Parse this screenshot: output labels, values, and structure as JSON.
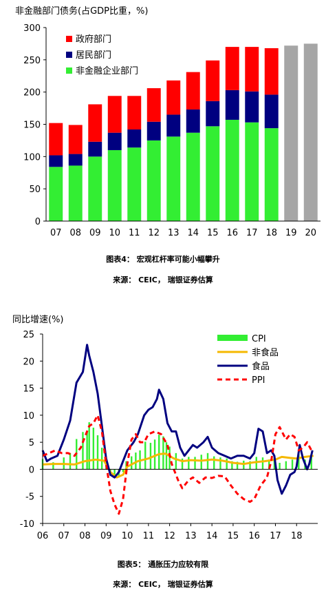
{
  "chart_data": [
    {
      "type": "bar",
      "stacked": true,
      "title": "非金融部门债务(占GDP比重，%)",
      "categories": [
        "07",
        "08",
        "09",
        "10",
        "11",
        "12",
        "13",
        "14",
        "15",
        "16",
        "17",
        "18",
        "19",
        "20"
      ],
      "ylim": [
        0,
        300
      ],
      "yticks": [
        "0",
        "50",
        "100",
        "150",
        "200",
        "250",
        "300"
      ],
      "grid": false,
      "legend_position": "top-left",
      "series": [
        {
          "name": "非金融企业部门",
          "color": "#33ee33",
          "values": [
            84,
            86,
            100,
            110,
            114,
            125,
            131,
            137,
            147,
            157,
            153,
            144,
            null,
            null
          ]
        },
        {
          "name": "居民部门",
          "color": "#000080",
          "values": [
            18,
            18,
            23,
            27,
            28,
            29,
            34,
            36,
            39,
            46,
            48,
            52,
            null,
            null
          ]
        },
        {
          "name": "政府部门",
          "color": "#ff0000",
          "values": [
            50,
            45,
            58,
            57,
            52,
            52,
            53,
            58,
            63,
            67,
            69,
            72,
            null,
            null
          ]
        },
        {
          "color": "#a6a6a6",
          "values": [
            null,
            null,
            null,
            null,
            null,
            null,
            null,
            null,
            null,
            null,
            null,
            null,
            272,
            275
          ]
        }
      ],
      "caption": "图表4： 宏观杠杆率可能小幅攀升",
      "source": "来源： CEIC， 瑞银证券估算"
    },
    {
      "type": "line",
      "title": "同比增速(%)",
      "ylim": [
        -10,
        25
      ],
      "yticks": [
        "25",
        "20",
        "15",
        "10",
        "5",
        "0",
        "-5",
        "-10"
      ],
      "xlim": [
        2006.0,
        2019.0
      ],
      "xticks": [
        "06",
        "07",
        "08",
        "09",
        "10",
        "11",
        "12",
        "13",
        "14",
        "15",
        "16",
        "17",
        "18"
      ],
      "grid": false,
      "legend_position": "top-right",
      "series": [
        {
          "name": "CPI",
          "style": "bar",
          "color": "#33ee33",
          "points": [
            [
              2006.0,
              1.9
            ],
            [
              2006.5,
              1.3
            ],
            [
              2007.0,
              2.2
            ],
            [
              2007.3,
              3.0
            ],
            [
              2007.6,
              5.6
            ],
            [
              2007.9,
              6.9
            ],
            [
              2008.1,
              7.1
            ],
            [
              2008.2,
              8.7
            ],
            [
              2008.4,
              7.7
            ],
            [
              2008.6,
              6.3
            ],
            [
              2008.8,
              4.0
            ],
            [
              2009.0,
              1.0
            ],
            [
              2009.2,
              -1.2
            ],
            [
              2009.4,
              -1.4
            ],
            [
              2009.6,
              -1.5
            ],
            [
              2009.8,
              -0.5
            ],
            [
              2009.95,
              1.5
            ],
            [
              2010.2,
              2.4
            ],
            [
              2010.4,
              3.1
            ],
            [
              2010.6,
              3.5
            ],
            [
              2010.85,
              5.1
            ],
            [
              2011.1,
              4.9
            ],
            [
              2011.3,
              5.5
            ],
            [
              2011.5,
              6.4
            ],
            [
              2011.7,
              6.1
            ],
            [
              2011.85,
              5.0
            ],
            [
              2012.0,
              4.2
            ],
            [
              2012.3,
              3.0
            ],
            [
              2012.6,
              2.0
            ],
            [
              2012.9,
              2.3
            ],
            [
              2013.2,
              2.3
            ],
            [
              2013.5,
              2.7
            ],
            [
              2013.8,
              3.0
            ],
            [
              2014.1,
              2.4
            ],
            [
              2014.4,
              2.2
            ],
            [
              2014.7,
              2.0
            ],
            [
              2014.95,
              1.5
            ],
            [
              2015.2,
              1.4
            ],
            [
              2015.5,
              1.6
            ],
            [
              2015.8,
              1.5
            ],
            [
              2016.1,
              2.3
            ],
            [
              2016.4,
              2.2
            ],
            [
              2016.7,
              1.8
            ],
            [
              2016.95,
              2.1
            ],
            [
              2017.2,
              1.2
            ],
            [
              2017.5,
              1.5
            ],
            [
              2017.8,
              1.8
            ],
            [
              2018.1,
              2.9
            ],
            [
              2018.4,
              1.8
            ],
            [
              2018.7,
              2.3
            ]
          ]
        },
        {
          "name": "非食品",
          "color": "#f5b800",
          "points": [
            [
              2006.0,
              0.9
            ],
            [
              2006.5,
              1.0
            ],
            [
              2007.0,
              1.0
            ],
            [
              2007.5,
              0.9
            ],
            [
              2008.0,
              1.5
            ],
            [
              2008.5,
              1.8
            ],
            [
              2008.9,
              1.6
            ],
            [
              2009.2,
              -0.5
            ],
            [
              2009.5,
              -1.5
            ],
            [
              2009.8,
              -1.0
            ],
            [
              2010.0,
              0.5
            ],
            [
              2010.5,
              1.5
            ],
            [
              2011.0,
              2.0
            ],
            [
              2011.5,
              2.8
            ],
            [
              2011.8,
              2.9
            ],
            [
              2012.2,
              2.0
            ],
            [
              2012.6,
              1.5
            ],
            [
              2013.0,
              1.7
            ],
            [
              2013.5,
              1.6
            ],
            [
              2014.0,
              1.8
            ],
            [
              2014.5,
              1.6
            ],
            [
              2015.0,
              1.2
            ],
            [
              2015.5,
              1.0
            ],
            [
              2016.0,
              1.3
            ],
            [
              2016.5,
              1.5
            ],
            [
              2017.0,
              1.8
            ],
            [
              2017.3,
              2.3
            ],
            [
              2017.7,
              2.1
            ],
            [
              2018.0,
              2.0
            ],
            [
              2018.4,
              2.3
            ],
            [
              2018.8,
              2.5
            ]
          ]
        },
        {
          "name": "食品",
          "color": "#000080",
          "points": [
            [
              2006.0,
              3.5
            ],
            [
              2006.2,
              1.5
            ],
            [
              2006.4,
              2.0
            ],
            [
              2006.7,
              2.5
            ],
            [
              2007.0,
              5.5
            ],
            [
              2007.3,
              9.0
            ],
            [
              2007.6,
              16.0
            ],
            [
              2007.9,
              18.0
            ],
            [
              2008.1,
              23.0
            ],
            [
              2008.2,
              21.0
            ],
            [
              2008.4,
              18.0
            ],
            [
              2008.6,
              14.0
            ],
            [
              2008.8,
              8.0
            ],
            [
              2009.0,
              2.0
            ],
            [
              2009.2,
              -1.0
            ],
            [
              2009.4,
              -1.5
            ],
            [
              2009.6,
              -0.5
            ],
            [
              2009.8,
              1.5
            ],
            [
              2010.0,
              3.5
            ],
            [
              2010.3,
              5.0
            ],
            [
              2010.5,
              6.5
            ],
            [
              2010.8,
              10.0
            ],
            [
              2011.0,
              11.0
            ],
            [
              2011.2,
              11.5
            ],
            [
              2011.4,
              13.0
            ],
            [
              2011.5,
              14.7
            ],
            [
              2011.7,
              13.0
            ],
            [
              2011.9,
              8.5
            ],
            [
              2012.1,
              7.0
            ],
            [
              2012.3,
              7.0
            ],
            [
              2012.5,
              4.0
            ],
            [
              2012.7,
              2.5
            ],
            [
              2012.9,
              3.5
            ],
            [
              2013.1,
              4.5
            ],
            [
              2013.3,
              4.0
            ],
            [
              2013.6,
              5.0
            ],
            [
              2013.8,
              6.0
            ],
            [
              2014.0,
              4.0
            ],
            [
              2014.3,
              3.0
            ],
            [
              2014.6,
              2.5
            ],
            [
              2014.9,
              2.0
            ],
            [
              2015.2,
              2.5
            ],
            [
              2015.5,
              2.5
            ],
            [
              2015.8,
              2.0
            ],
            [
              2016.0,
              3.0
            ],
            [
              2016.2,
              7.5
            ],
            [
              2016.4,
              7.0
            ],
            [
              2016.6,
              3.0
            ],
            [
              2016.8,
              3.5
            ],
            [
              2016.95,
              2.5
            ],
            [
              2017.1,
              -2.0
            ],
            [
              2017.3,
              -4.5
            ],
            [
              2017.5,
              -3.0
            ],
            [
              2017.7,
              -1.0
            ],
            [
              2017.9,
              -0.5
            ],
            [
              2018.0,
              0.5
            ],
            [
              2018.15,
              4.5
            ],
            [
              2018.3,
              2.0
            ],
            [
              2018.5,
              0.0
            ],
            [
              2018.6,
              1.0
            ],
            [
              2018.75,
              3.5
            ]
          ]
        },
        {
          "name": "PPI",
          "color": "#ff0000",
          "dashed": true,
          "points": [
            [
              2006.0,
              2.5
            ],
            [
              2006.3,
              3.0
            ],
            [
              2006.6,
              3.5
            ],
            [
              2006.9,
              3.0
            ],
            [
              2007.2,
              3.0
            ],
            [
              2007.5,
              2.5
            ],
            [
              2007.8,
              4.0
            ],
            [
              2008.0,
              6.0
            ],
            [
              2008.2,
              8.0
            ],
            [
              2008.4,
              8.5
            ],
            [
              2008.6,
              10.0
            ],
            [
              2008.8,
              7.0
            ],
            [
              2009.0,
              1.0
            ],
            [
              2009.2,
              -4.0
            ],
            [
              2009.4,
              -6.5
            ],
            [
              2009.6,
              -8.2
            ],
            [
              2009.8,
              -5.5
            ],
            [
              2010.0,
              1.0
            ],
            [
              2010.2,
              5.5
            ],
            [
              2010.4,
              6.5
            ],
            [
              2010.6,
              5.0
            ],
            [
              2010.8,
              5.0
            ],
            [
              2011.0,
              6.5
            ],
            [
              2011.3,
              7.0
            ],
            [
              2011.6,
              6.5
            ],
            [
              2011.9,
              4.5
            ],
            [
              2012.1,
              1.0
            ],
            [
              2012.4,
              -2.0
            ],
            [
              2012.6,
              -3.5
            ],
            [
              2012.9,
              -2.0
            ],
            [
              2013.1,
              -1.5
            ],
            [
              2013.4,
              -2.5
            ],
            [
              2013.7,
              -1.5
            ],
            [
              2014.0,
              -1.6
            ],
            [
              2014.3,
              -1.2
            ],
            [
              2014.6,
              -1.3
            ],
            [
              2014.9,
              -3.0
            ],
            [
              2015.2,
              -4.5
            ],
            [
              2015.5,
              -5.5
            ],
            [
              2015.8,
              -6.0
            ],
            [
              2016.0,
              -5.5
            ],
            [
              2016.3,
              -3.0
            ],
            [
              2016.6,
              -1.5
            ],
            [
              2016.8,
              1.5
            ],
            [
              2017.0,
              6.5
            ],
            [
              2017.2,
              7.8
            ],
            [
              2017.5,
              5.5
            ],
            [
              2017.7,
              6.5
            ],
            [
              2017.9,
              6.0
            ],
            [
              2018.1,
              3.5
            ],
            [
              2018.3,
              4.0
            ],
            [
              2018.5,
              5.0
            ],
            [
              2018.7,
              3.5
            ]
          ]
        }
      ],
      "caption": "图表5： 通胀压力应较有限",
      "source": "来源： CEIC， 瑞银证券估算"
    }
  ]
}
